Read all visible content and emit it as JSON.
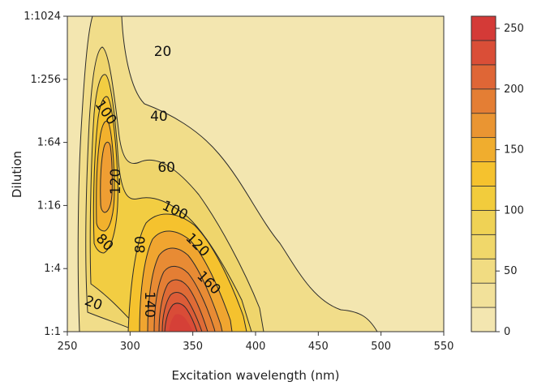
{
  "chart_data": {
    "type": "heatmap",
    "subtype": "filled-contour",
    "xlabel": "Excitation wavelength (nm)",
    "ylabel": "Dilution",
    "xlim": [
      250,
      550
    ],
    "x_ticks": [
      250,
      300,
      350,
      400,
      450,
      500,
      550
    ],
    "y_ticks": [
      "1:1",
      "1:4",
      "1:16",
      "1:64",
      "1:256",
      "1:1024"
    ],
    "grid": false,
    "contour_levels": [
      20,
      40,
      60,
      80,
      100,
      120,
      140,
      160,
      180,
      200,
      220,
      240
    ],
    "contour_labels": [
      {
        "text": "20",
        "x": 271,
        "y": 0.46,
        "rotate": 20
      },
      {
        "text": "20",
        "x": 326,
        "y": 4.45,
        "rotate": 0
      },
      {
        "text": "40",
        "x": 323,
        "y": 3.42,
        "rotate": 0
      },
      {
        "text": "60",
        "x": 329,
        "y": 2.61,
        "rotate": 0
      },
      {
        "text": "80",
        "x": 280,
        "y": 1.42,
        "rotate": 45
      },
      {
        "text": "80",
        "x": 308,
        "y": 1.38,
        "rotate": -90
      },
      {
        "text": "100",
        "x": 281,
        "y": 3.48,
        "rotate": 55
      },
      {
        "text": "100",
        "x": 336,
        "y": 1.93,
        "rotate": 25
      },
      {
        "text": "120",
        "x": 288,
        "y": 2.38,
        "rotate": -90
      },
      {
        "text": "120",
        "x": 354,
        "y": 1.38,
        "rotate": 45
      },
      {
        "text": "140",
        "x": 316,
        "y": 0.43,
        "rotate": 90
      },
      {
        "text": "160",
        "x": 363,
        "y": 0.78,
        "rotate": 45
      }
    ],
    "colorbar": {
      "min": 0,
      "max": 260,
      "ticks": [
        0,
        50,
        100,
        150,
        200,
        250
      ],
      "colors": [
        "#f3e6b0",
        "#f2e19a",
        "#f1dc82",
        "#f0d76a",
        "#efd255",
        "#f2cc3c",
        "#f5c22e",
        "#f0ad2e",
        "#ea9532",
        "#e47e34",
        "#df6636",
        "#da4e37",
        "#d43a37"
      ]
    },
    "peaks": [
      {
        "x": 280,
        "y": 2.4,
        "value": 125
      },
      {
        "x": 347,
        "y": 0.05,
        "value": 250
      }
    ]
  }
}
